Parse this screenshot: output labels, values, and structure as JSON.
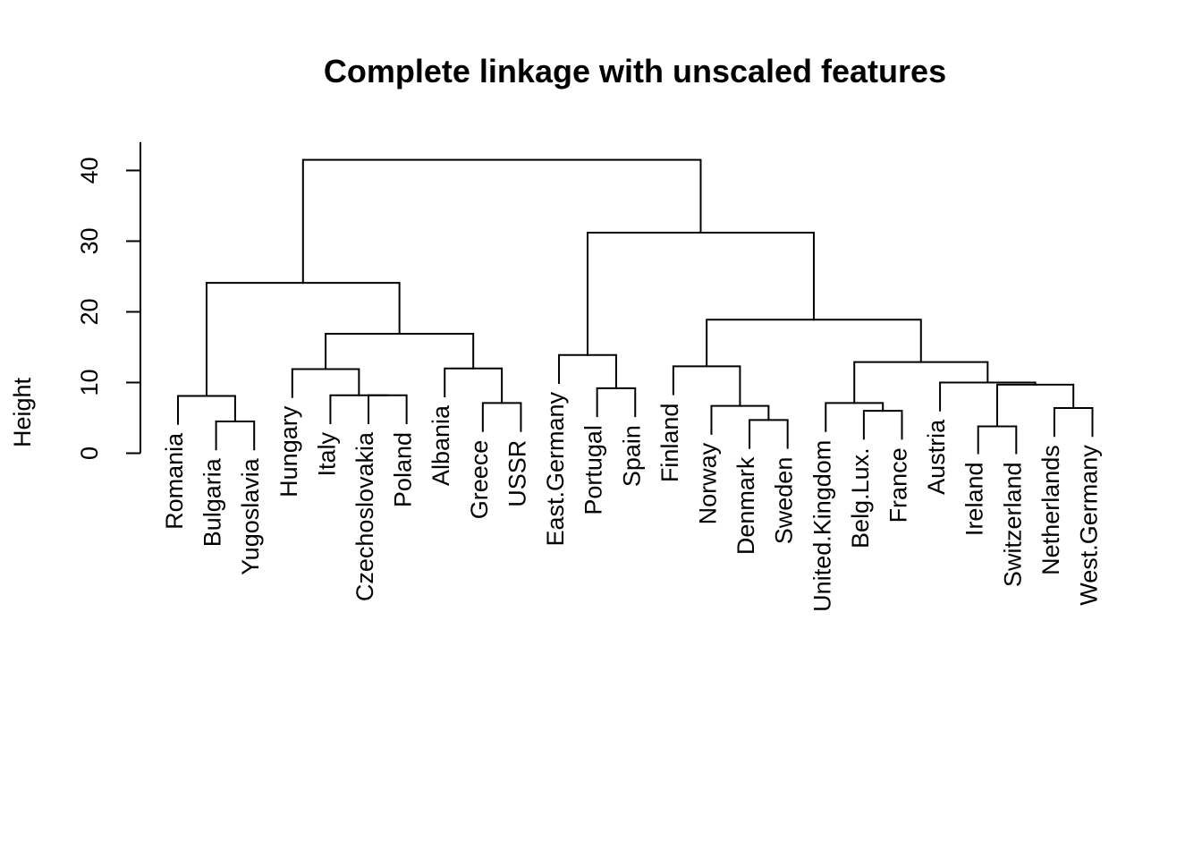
{
  "chart_data": {
    "type": "dendrogram",
    "title": "Complete linkage with unscaled features",
    "xlabel": "",
    "ylabel": "Height",
    "ylim": [
      0,
      44
    ],
    "yticks": [
      0,
      10,
      20,
      30,
      40
    ],
    "labels": [
      "Romania",
      "Bulgaria",
      "Yugoslavia",
      "Hungary",
      "Italy",
      "Czechoslovakia",
      "Poland",
      "Albania",
      "Greece",
      "USSR",
      "East.Germany",
      "Portugal",
      "Spain",
      "Finland",
      "Norway",
      "Denmark",
      "Sweden",
      "United.Kingdom",
      "Belg.Lux.",
      "France",
      "Austria",
      "Ireland",
      "Switzerland",
      "Netherlands",
      "West.Germany"
    ],
    "merges": [
      {
        "left": [
          "leaf",
          1
        ],
        "right": [
          "leaf",
          2
        ],
        "height": 4.5
      },
      {
        "left": [
          "leaf",
          0
        ],
        "right": [
          "node",
          0
        ],
        "height": 8.1
      },
      {
        "left": [
          "leaf",
          5
        ],
        "right": [
          "leaf",
          6
        ],
        "height": 8.2
      },
      {
        "left": [
          "leaf",
          4
        ],
        "right": [
          "node",
          2
        ],
        "height": 8.2
      },
      {
        "left": [
          "leaf",
          3
        ],
        "right": [
          "node",
          3
        ],
        "height": 11.9
      },
      {
        "left": [
          "leaf",
          8
        ],
        "right": [
          "leaf",
          9
        ],
        "height": 7.1
      },
      {
        "left": [
          "leaf",
          7
        ],
        "right": [
          "node",
          5
        ],
        "height": 12.0
      },
      {
        "left": [
          "node",
          4
        ],
        "right": [
          "node",
          6
        ],
        "height": 16.9
      },
      {
        "left": [
          "node",
          1
        ],
        "right": [
          "node",
          7
        ],
        "height": 24.1
      },
      {
        "left": [
          "leaf",
          11
        ],
        "right": [
          "leaf",
          12
        ],
        "height": 9.2
      },
      {
        "left": [
          "leaf",
          10
        ],
        "right": [
          "node",
          9
        ],
        "height": 13.9
      },
      {
        "left": [
          "leaf",
          15
        ],
        "right": [
          "leaf",
          16
        ],
        "height": 4.7
      },
      {
        "left": [
          "leaf",
          14
        ],
        "right": [
          "node",
          11
        ],
        "height": 6.7
      },
      {
        "left": [
          "leaf",
          13
        ],
        "right": [
          "node",
          12
        ],
        "height": 12.3
      },
      {
        "left": [
          "leaf",
          18
        ],
        "right": [
          "leaf",
          19
        ],
        "height": 6.0
      },
      {
        "left": [
          "leaf",
          17
        ],
        "right": [
          "node",
          14
        ],
        "height": 7.1
      },
      {
        "left": [
          "leaf",
          21
        ],
        "right": [
          "leaf",
          22
        ],
        "height": 3.8
      },
      {
        "left": [
          "leaf",
          23
        ],
        "right": [
          "leaf",
          24
        ],
        "height": 6.4
      },
      {
        "left": [
          "node",
          16
        ],
        "right": [
          "node",
          17
        ],
        "height": 9.7
      },
      {
        "left": [
          "leaf",
          20
        ],
        "right": [
          "node",
          18
        ],
        "height": 10.0
      },
      {
        "left": [
          "node",
          15
        ],
        "right": [
          "node",
          19
        ],
        "height": 12.9
      },
      {
        "left": [
          "node",
          13
        ],
        "right": [
          "node",
          20
        ],
        "height": 18.9
      },
      {
        "left": [
          "node",
          10
        ],
        "right": [
          "node",
          21
        ],
        "height": 31.2
      },
      {
        "left": [
          "node",
          8
        ],
        "right": [
          "node",
          22
        ],
        "height": 41.5
      }
    ]
  }
}
